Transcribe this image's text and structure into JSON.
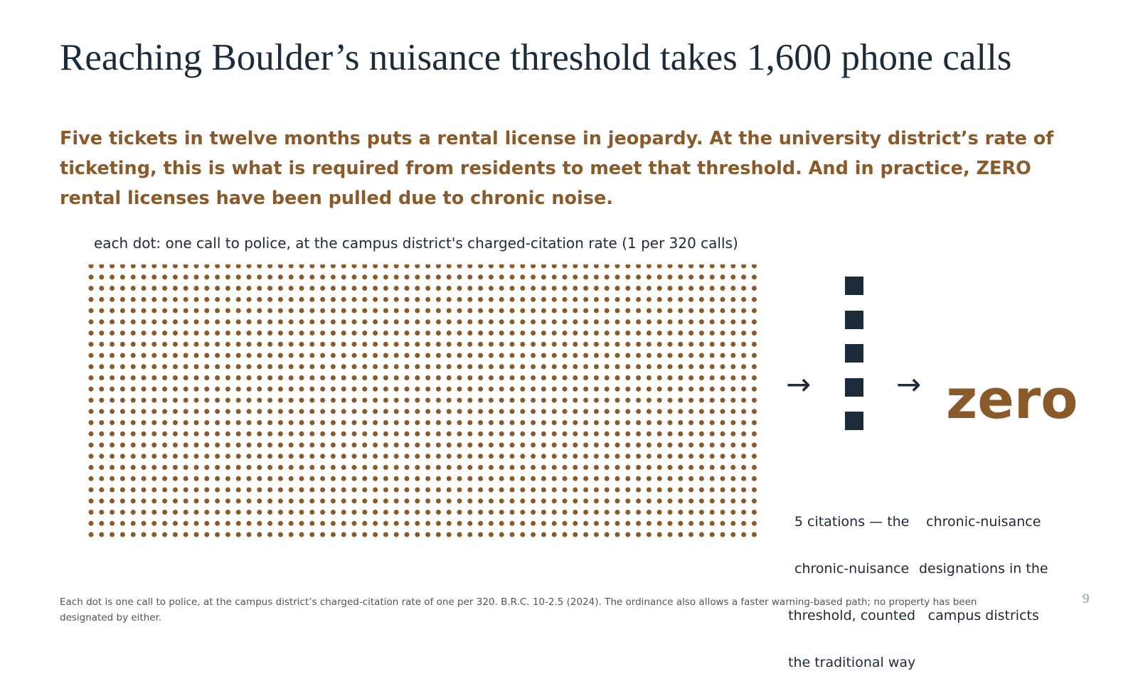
{
  "slide": {
    "title": "Reaching Boulder’s nuisance threshold takes 1,600 phone calls",
    "subtitle": "Five tickets in twelve months puts a rental license in jeopardy. At the university district’s rate of ticketing, this is what is required from residents to meet that threshold. And in practice, ZERO rental licenses have been pulled due to chronic noise.",
    "page_number": "9",
    "footnote": "Each dot is one call to police, at the campus district’s charged-citation rate of one per 320. B.R.C. 10-2.5 (2024). The ordinance also allows a faster warning-based path; no property has been designated by either."
  },
  "diagram": {
    "dot_caption": "each dot: one call to police, at the campus district's charged-citation rate (1 per 320 calls)",
    "dot_count": 1600,
    "dot_columns": 64,
    "dot_rows": 25,
    "citation_count": 5,
    "arrow_symbol": "→",
    "zero_label": "zero",
    "citations_label_lines": [
      "5 citations — the",
      "chronic-nuisance",
      "threshold, counted",
      "the traditional way"
    ],
    "designations_label_lines": [
      "chronic-nuisance",
      "designations in the",
      "campus districts"
    ],
    "colors": {
      "dot": "#8b5a2b",
      "square": "#1c2b3a",
      "zero": "#8b5a2b",
      "title": "#1c2b3a",
      "subtitle": "#8b5a2b"
    }
  }
}
